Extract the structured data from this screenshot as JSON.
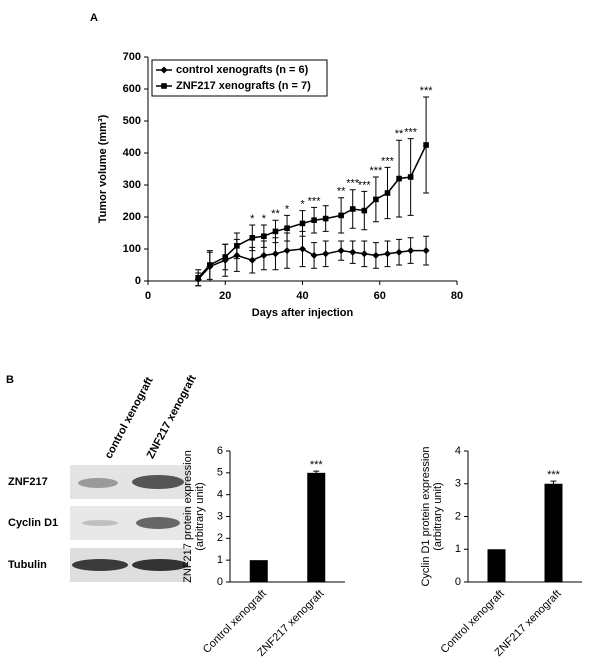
{
  "panel_labels": [
    "A",
    "B"
  ],
  "chart_data": [
    {
      "type": "line",
      "y_label": "Tumor volume (mm³)",
      "x_label": "Days after injection",
      "x": [
        13,
        16,
        20,
        23,
        27,
        30,
        33,
        36,
        40,
        43,
        46,
        50,
        53,
        56,
        59,
        62,
        65,
        68,
        72
      ],
      "xlim": [
        0,
        80
      ],
      "xticks": [
        0,
        20,
        40,
        60,
        80
      ],
      "ylim": [
        0,
        700
      ],
      "yticks": [
        0,
        100,
        200,
        300,
        400,
        500,
        600,
        700
      ],
      "legend": "upper left",
      "series": [
        {
          "name": "control xenografts (n = 6)",
          "color": "#000000",
          "marker": "diamond",
          "values": [
            5,
            45,
            65,
            80,
            65,
            80,
            85,
            95,
            100,
            80,
            85,
            95,
            90,
            85,
            80,
            85,
            90,
            95,
            95
          ],
          "errors": [
            20,
            45,
            50,
            50,
            40,
            45,
            50,
            55,
            55,
            40,
            40,
            30,
            35,
            40,
            40,
            40,
            40,
            40,
            45
          ]
        },
        {
          "name": "ZNF217 xenografts (n = 7)",
          "color": "#000000",
          "marker": "square",
          "values": [
            10,
            50,
            75,
            110,
            135,
            140,
            155,
            165,
            180,
            190,
            195,
            205,
            225,
            220,
            255,
            275,
            320,
            325,
            425
          ],
          "errors": [
            25,
            45,
            40,
            40,
            40,
            35,
            35,
            40,
            40,
            40,
            40,
            55,
            60,
            60,
            70,
            80,
            120,
            120,
            150
          ],
          "annotations": [
            null,
            null,
            null,
            null,
            "*",
            "*",
            "**",
            "*",
            "*",
            "***",
            null,
            "**",
            "***",
            "***",
            "***",
            "***",
            "**",
            "***",
            "***"
          ]
        }
      ]
    },
    {
      "type": "bar",
      "y_label": [
        "ZNF217 protein expression",
        "(arbitrary unit)"
      ],
      "categories": [
        "Control xenograft",
        "ZNF217 xenograft"
      ],
      "values": [
        1,
        5
      ],
      "errors": [
        null,
        0.08
      ],
      "annotations": [
        null,
        "***"
      ],
      "ylim": [
        0,
        6
      ],
      "yticks": [
        0,
        1,
        2,
        3,
        4,
        5,
        6
      ],
      "color": "#000000"
    },
    {
      "type": "bar",
      "y_label": [
        "Cyclin D1 protein expression",
        "(arbitrary unit)"
      ],
      "categories": [
        "Control xenograft",
        "ZNF217 xenograft"
      ],
      "values": [
        1,
        3
      ],
      "errors": [
        null,
        0.08
      ],
      "annotations": [
        null,
        "***"
      ],
      "ylim": [
        0,
        4
      ],
      "yticks": [
        0,
        1,
        2,
        3,
        4
      ],
      "color": "#000000"
    }
  ],
  "blot": {
    "lanes": [
      "control xenograft",
      "ZNF217 xenograft"
    ],
    "rows": [
      "ZNF217",
      "Cyclin D1",
      "Tubulin"
    ]
  }
}
